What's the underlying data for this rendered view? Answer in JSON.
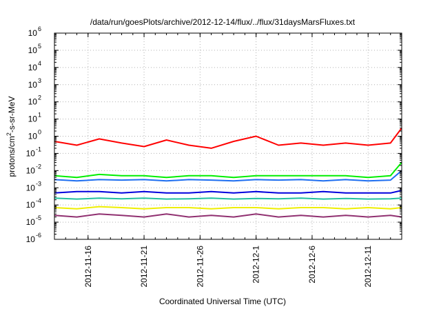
{
  "chart_data": {
    "type": "line",
    "title": "/data/run/goesPlots/archive/2012-12-14/flux/../flux/31daysMarsFluxes.txt",
    "xlabel": "Coordinated Universal Time (UTC)",
    "ylabel": "protons/cm2-s-sr-MeV",
    "ylabel_parts": [
      "protons/cm",
      "2",
      "-s-sr-MeV"
    ],
    "x_range": [
      "2012-11-13",
      "2012-12-14"
    ],
    "x_ticks": [
      "2012-11-16",
      "2012-11-21",
      "2012-11-26",
      "2012-12-1",
      "2012-12-6",
      "2012-12-11"
    ],
    "y_scale": "log",
    "y_range": [
      1e-06,
      1000000.0
    ],
    "y_ticks": [
      {
        "base": "10",
        "exp": "-6",
        "value": 1e-06
      },
      {
        "base": "10",
        "exp": "-5",
        "value": 1e-05
      },
      {
        "base": "10",
        "exp": "-4",
        "value": 0.0001
      },
      {
        "base": "10",
        "exp": "-3",
        "value": 0.001
      },
      {
        "base": "10",
        "exp": "-2",
        "value": 0.01
      },
      {
        "base": "10",
        "exp": "-1",
        "value": 0.1
      },
      {
        "base": "10",
        "exp": "0",
        "value": 1
      },
      {
        "base": "10",
        "exp": "1",
        "value": 10
      },
      {
        "base": "10",
        "exp": "2",
        "value": 100
      },
      {
        "base": "10",
        "exp": "3",
        "value": 1000
      },
      {
        "base": "10",
        "exp": "4",
        "value": 10000
      },
      {
        "base": "10",
        "exp": "5",
        "value": 100000
      },
      {
        "base": "10",
        "exp": "6",
        "value": 1000000
      }
    ],
    "grid": true,
    "legend": "none",
    "series": [
      {
        "color": "#ff0000",
        "x": [
          "2012-11-13",
          "2012-11-15",
          "2012-11-17",
          "2012-11-19",
          "2012-11-21",
          "2012-11-23",
          "2012-11-25",
          "2012-11-27",
          "2012-11-29",
          "2012-12-1",
          "2012-12-3",
          "2012-12-5",
          "2012-12-7",
          "2012-12-9",
          "2012-12-11",
          "2012-12-13",
          "2012-12-14"
        ],
        "y": [
          0.5,
          0.3,
          0.7,
          0.4,
          0.25,
          0.6,
          0.3,
          0.2,
          0.5,
          1.0,
          0.3,
          0.4,
          0.3,
          0.4,
          0.3,
          0.4,
          3.0
        ]
      },
      {
        "color": "#00ee00",
        "x": [
          "2012-11-13",
          "2012-11-15",
          "2012-11-17",
          "2012-11-19",
          "2012-11-21",
          "2012-11-23",
          "2012-11-25",
          "2012-11-27",
          "2012-11-29",
          "2012-12-1",
          "2012-12-3",
          "2012-12-5",
          "2012-12-7",
          "2012-12-9",
          "2012-12-11",
          "2012-12-13",
          "2012-12-14"
        ],
        "y": [
          0.005,
          0.004,
          0.006,
          0.005,
          0.005,
          0.004,
          0.005,
          0.005,
          0.004,
          0.005,
          0.005,
          0.005,
          0.005,
          0.005,
          0.004,
          0.005,
          0.03
        ]
      },
      {
        "color": "#1e6ef0",
        "x": [
          "2012-11-13",
          "2012-11-15",
          "2012-11-17",
          "2012-11-19",
          "2012-11-21",
          "2012-11-23",
          "2012-11-25",
          "2012-11-27",
          "2012-11-29",
          "2012-12-1",
          "2012-12-3",
          "2012-12-5",
          "2012-12-7",
          "2012-12-9",
          "2012-12-11",
          "2012-12-13",
          "2012-12-14"
        ],
        "y": [
          0.003,
          0.0025,
          0.003,
          0.0028,
          0.003,
          0.0025,
          0.003,
          0.0028,
          0.0025,
          0.003,
          0.0028,
          0.003,
          0.0025,
          0.003,
          0.0025,
          0.0028,
          0.01
        ]
      },
      {
        "color": "#0000dd",
        "x": [
          "2012-11-13",
          "2012-11-15",
          "2012-11-17",
          "2012-11-19",
          "2012-11-21",
          "2012-11-23",
          "2012-11-25",
          "2012-11-27",
          "2012-11-29",
          "2012-12-1",
          "2012-12-3",
          "2012-12-5",
          "2012-12-7",
          "2012-12-9",
          "2012-12-11",
          "2012-12-13",
          "2012-12-14"
        ],
        "y": [
          0.0005,
          0.0006,
          0.0006,
          0.0005,
          0.0006,
          0.0005,
          0.0005,
          0.0006,
          0.0005,
          0.0006,
          0.0005,
          0.0005,
          0.0006,
          0.0005,
          0.0005,
          0.0005,
          0.0007
        ]
      },
      {
        "color": "#20c0a0",
        "x": [
          "2012-11-13",
          "2012-11-15",
          "2012-11-17",
          "2012-11-19",
          "2012-11-21",
          "2012-11-23",
          "2012-11-25",
          "2012-11-27",
          "2012-11-29",
          "2012-12-1",
          "2012-12-3",
          "2012-12-5",
          "2012-12-7",
          "2012-12-9",
          "2012-12-11",
          "2012-12-13",
          "2012-12-14"
        ],
        "y": [
          0.00025,
          0.00022,
          0.00025,
          0.00023,
          0.00025,
          0.00022,
          0.00023,
          0.00025,
          0.00022,
          0.00024,
          0.00023,
          0.00025,
          0.00022,
          0.00024,
          0.00022,
          0.00023,
          0.00025
        ]
      },
      {
        "color": "#eeee00",
        "x": [
          "2012-11-13",
          "2012-11-15",
          "2012-11-17",
          "2012-11-19",
          "2012-11-21",
          "2012-11-23",
          "2012-11-25",
          "2012-11-27",
          "2012-11-29",
          "2012-12-1",
          "2012-12-3",
          "2012-12-5",
          "2012-12-7",
          "2012-12-9",
          "2012-12-11",
          "2012-12-13",
          "2012-12-14"
        ],
        "y": [
          7e-05,
          6e-05,
          8e-05,
          7e-05,
          6e-05,
          7e-05,
          7e-05,
          6e-05,
          7e-05,
          7e-05,
          6e-05,
          7e-05,
          7e-05,
          6e-05,
          7e-05,
          6e-05,
          7e-05
        ]
      },
      {
        "color": "#903070",
        "x": [
          "2012-11-13",
          "2012-11-15",
          "2012-11-17",
          "2012-11-19",
          "2012-11-21",
          "2012-11-23",
          "2012-11-25",
          "2012-11-27",
          "2012-11-29",
          "2012-12-1",
          "2012-12-3",
          "2012-12-5",
          "2012-12-7",
          "2012-12-9",
          "2012-12-11",
          "2012-12-13",
          "2012-12-14"
        ],
        "y": [
          2.5e-05,
          2e-05,
          3e-05,
          2.5e-05,
          2e-05,
          3e-05,
          2e-05,
          2.5e-05,
          2e-05,
          3e-05,
          2e-05,
          2.5e-05,
          2e-05,
          2.5e-05,
          2e-05,
          2.5e-05,
          2e-05
        ]
      }
    ]
  }
}
